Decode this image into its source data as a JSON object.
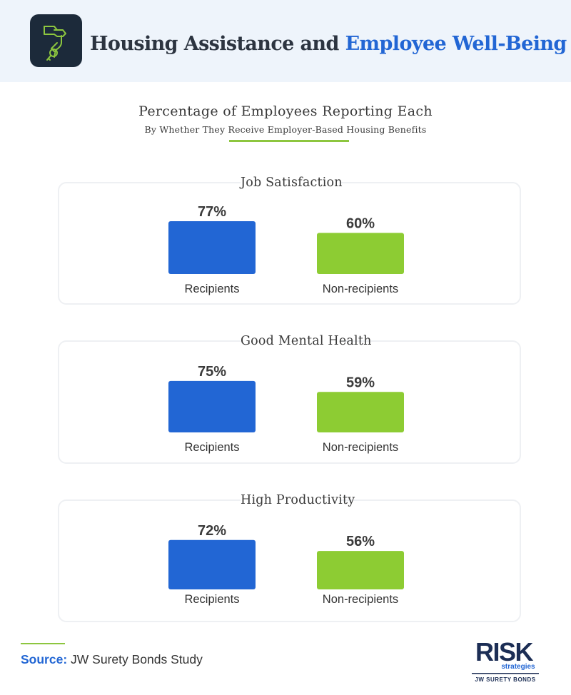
{
  "header": {
    "title_part1": "Housing Assistance and",
    "title_part2": "Employee Well-Being",
    "icon": "hand-holding-key-icon"
  },
  "subtitle": "Percentage of Employees Reporting Each",
  "subtitle2": "By Whether They Receive Employer-Based Housing Benefits",
  "colors": {
    "recipients": "#2266d4",
    "non_recipients": "#8dcc33",
    "accent_line": "#8dc63f",
    "header_bg": "#eef4fb"
  },
  "chart_data": [
    {
      "type": "bar",
      "title": "Job Satisfaction",
      "categories": [
        "Recipients",
        "Non-recipients"
      ],
      "values": [
        77,
        60
      ],
      "value_labels": [
        "77%",
        "60%"
      ],
      "unit": "%"
    },
    {
      "type": "bar",
      "title": "Good Mental Health",
      "categories": [
        "Recipients",
        "Non-recipients"
      ],
      "values": [
        75,
        59
      ],
      "value_labels": [
        "75%",
        "59%"
      ],
      "unit": "%"
    },
    {
      "type": "bar",
      "title": "High Productivity",
      "categories": [
        "Recipients",
        "Non-recipients"
      ],
      "values": [
        72,
        56
      ],
      "value_labels": [
        "72%",
        "56%"
      ],
      "unit": "%"
    }
  ],
  "source": {
    "label": "Source:",
    "text": "JW Surety Bonds Study"
  },
  "brand": {
    "name": "RISK",
    "line2": "strategies",
    "line3": "JW SURETY BONDS"
  }
}
